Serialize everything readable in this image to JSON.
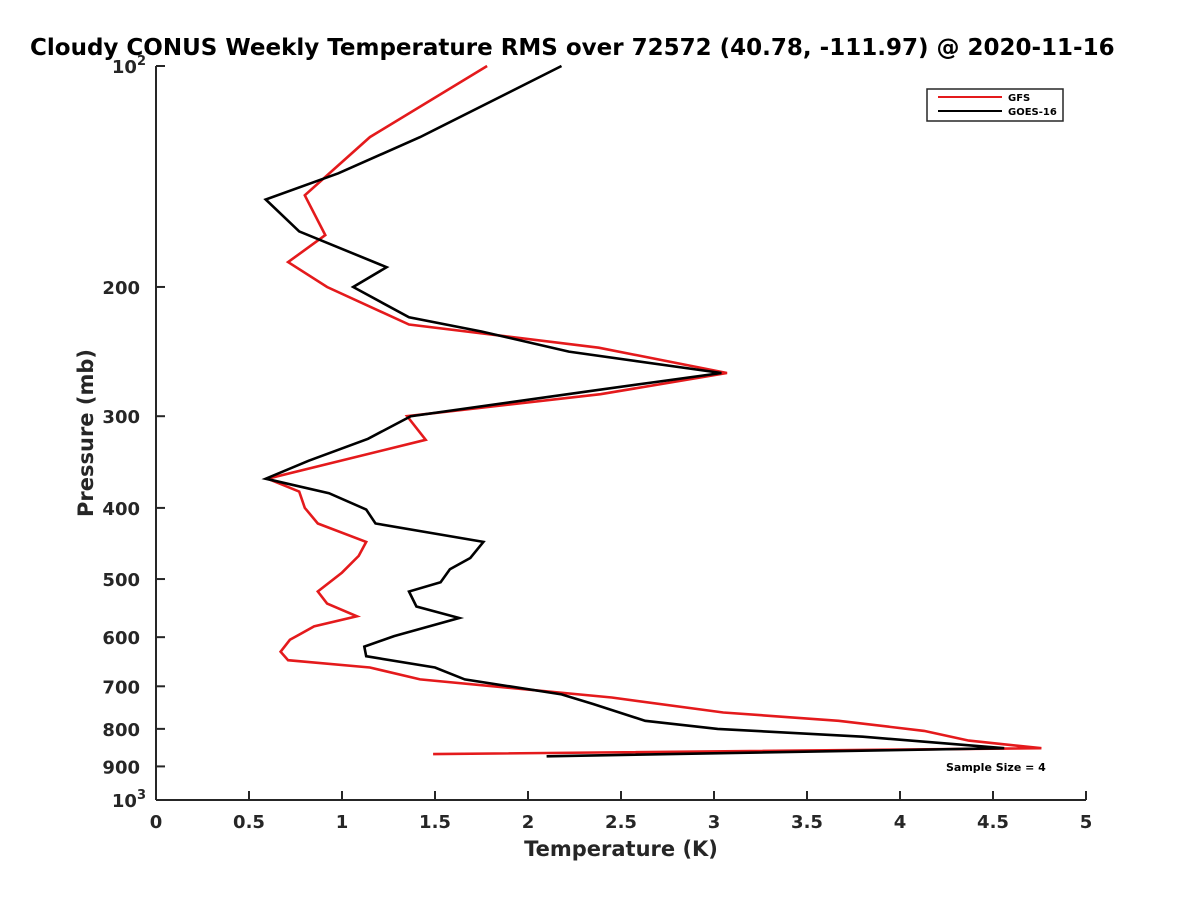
{
  "chart_data": {
    "type": "line",
    "title": "Cloudy CONUS Weekly Temperature RMS over 72572 (40.78, -111.97) @ 2020-11-16",
    "xlabel": "Temperature (K)",
    "ylabel": "Pressure (mb)",
    "xlim": [
      0,
      5
    ],
    "ylim": [
      100,
      1000
    ],
    "yscale": "log",
    "yreversed": true,
    "x_ticks": [
      {
        "value": 0,
        "label": "0"
      },
      {
        "value": 0.5,
        "label": "0.5"
      },
      {
        "value": 1,
        "label": "1"
      },
      {
        "value": 1.5,
        "label": "1.5"
      },
      {
        "value": 2,
        "label": "2"
      },
      {
        "value": 2.5,
        "label": "2.5"
      },
      {
        "value": 3,
        "label": "3"
      },
      {
        "value": 3.5,
        "label": "3.5"
      },
      {
        "value": 4,
        "label": "4"
      },
      {
        "value": 4.5,
        "label": "4.5"
      },
      {
        "value": 5,
        "label": "5"
      }
    ],
    "y_ticks": [
      {
        "value": 100,
        "base": "10",
        "exp": "2"
      },
      {
        "value": 200,
        "label": "200"
      },
      {
        "value": 300,
        "label": "300"
      },
      {
        "value": 400,
        "label": "400"
      },
      {
        "value": 500,
        "label": "500"
      },
      {
        "value": 600,
        "label": "600"
      },
      {
        "value": 700,
        "label": "700"
      },
      {
        "value": 800,
        "label": "800"
      },
      {
        "value": 900,
        "label": "900"
      },
      {
        "value": 1000,
        "base": "10",
        "exp": "3"
      }
    ],
    "legend_position": "top-right",
    "annotation": "Sample Size = 4",
    "series": [
      {
        "name": "GFS",
        "color": "#e41a1c",
        "points": [
          {
            "x": 1.78,
            "p": 100
          },
          {
            "x": 1.15,
            "p": 125
          },
          {
            "x": 0.8,
            "p": 150
          },
          {
            "x": 0.91,
            "p": 170
          },
          {
            "x": 0.71,
            "p": 185
          },
          {
            "x": 0.92,
            "p": 200
          },
          {
            "x": 1.36,
            "p": 225
          },
          {
            "x": 2.38,
            "p": 242
          },
          {
            "x": 3.07,
            "p": 262
          },
          {
            "x": 2.39,
            "p": 280
          },
          {
            "x": 1.35,
            "p": 300
          },
          {
            "x": 1.45,
            "p": 323
          },
          {
            "x": 0.6,
            "p": 365
          },
          {
            "x": 0.77,
            "p": 380
          },
          {
            "x": 0.8,
            "p": 400
          },
          {
            "x": 0.87,
            "p": 420
          },
          {
            "x": 1.13,
            "p": 445
          },
          {
            "x": 1.09,
            "p": 465
          },
          {
            "x": 1.0,
            "p": 490
          },
          {
            "x": 0.87,
            "p": 520
          },
          {
            "x": 0.92,
            "p": 540
          },
          {
            "x": 1.08,
            "p": 562
          },
          {
            "x": 0.85,
            "p": 580
          },
          {
            "x": 0.72,
            "p": 605
          },
          {
            "x": 0.67,
            "p": 628
          },
          {
            "x": 0.71,
            "p": 645
          },
          {
            "x": 1.15,
            "p": 660
          },
          {
            "x": 1.42,
            "p": 685
          },
          {
            "x": 2.45,
            "p": 725
          },
          {
            "x": 3.05,
            "p": 760
          },
          {
            "x": 3.67,
            "p": 780
          },
          {
            "x": 4.13,
            "p": 805
          },
          {
            "x": 4.37,
            "p": 830
          },
          {
            "x": 4.76,
            "p": 850
          },
          {
            "x": 1.49,
            "p": 866
          }
        ]
      },
      {
        "name": "GOES-16",
        "color": "#000000",
        "points": [
          {
            "x": 2.18,
            "p": 100
          },
          {
            "x": 1.42,
            "p": 125
          },
          {
            "x": 0.98,
            "p": 140
          },
          {
            "x": 0.59,
            "p": 152
          },
          {
            "x": 0.77,
            "p": 168
          },
          {
            "x": 1.24,
            "p": 188
          },
          {
            "x": 1.06,
            "p": 200
          },
          {
            "x": 1.36,
            "p": 220
          },
          {
            "x": 1.75,
            "p": 230
          },
          {
            "x": 2.22,
            "p": 245
          },
          {
            "x": 3.04,
            "p": 262
          },
          {
            "x": 2.3,
            "p": 278
          },
          {
            "x": 1.37,
            "p": 300
          },
          {
            "x": 1.14,
            "p": 322
          },
          {
            "x": 0.82,
            "p": 345
          },
          {
            "x": 0.59,
            "p": 365
          },
          {
            "x": 0.93,
            "p": 382
          },
          {
            "x": 1.13,
            "p": 402
          },
          {
            "x": 1.18,
            "p": 420
          },
          {
            "x": 1.76,
            "p": 445
          },
          {
            "x": 1.69,
            "p": 468
          },
          {
            "x": 1.58,
            "p": 485
          },
          {
            "x": 1.53,
            "p": 505
          },
          {
            "x": 1.36,
            "p": 520
          },
          {
            "x": 1.4,
            "p": 545
          },
          {
            "x": 1.63,
            "p": 565
          },
          {
            "x": 1.28,
            "p": 598
          },
          {
            "x": 1.12,
            "p": 618
          },
          {
            "x": 1.13,
            "p": 637
          },
          {
            "x": 1.5,
            "p": 660
          },
          {
            "x": 1.66,
            "p": 685
          },
          {
            "x": 2.18,
            "p": 718
          },
          {
            "x": 2.35,
            "p": 740
          },
          {
            "x": 2.63,
            "p": 780
          },
          {
            "x": 3.02,
            "p": 800
          },
          {
            "x": 3.8,
            "p": 820
          },
          {
            "x": 4.56,
            "p": 850
          },
          {
            "x": 2.1,
            "p": 872
          }
        ]
      }
    ]
  }
}
